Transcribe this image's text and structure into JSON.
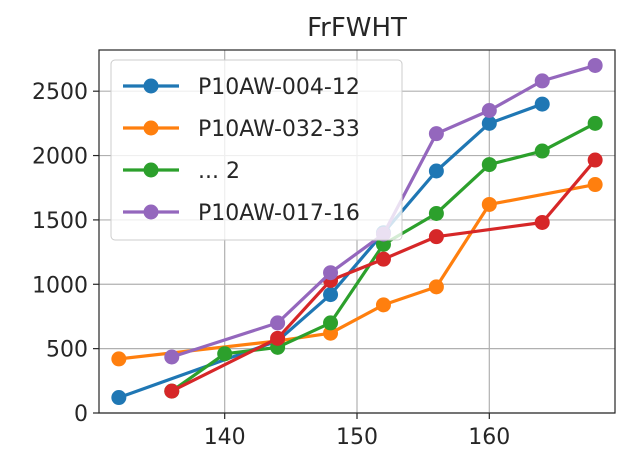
{
  "chart_data": {
    "type": "line",
    "title": "FrFWHT",
    "xlabel": "",
    "ylabel": "",
    "xlim": [
      130.5,
      169.5
    ],
    "ylim": [
      0,
      2820
    ],
    "xticks": [
      140,
      150,
      160
    ],
    "yticks": [
      0,
      500,
      1000,
      1500,
      2000,
      2500
    ],
    "grid": true,
    "legend_position": "upper-left",
    "series": [
      {
        "name": "P10AW-004-12",
        "color": "#1f77b4",
        "x": [
          132,
          144,
          148,
          152,
          156,
          160,
          164
        ],
        "y": [
          120,
          560,
          920,
          1400,
          1880,
          2250,
          2400
        ]
      },
      {
        "name": "P10AW-032-33",
        "color": "#ff7f0e",
        "x": [
          132,
          144,
          148,
          152,
          156,
          160,
          168
        ],
        "y": [
          420,
          560,
          620,
          840,
          980,
          1620,
          1775
        ]
      },
      {
        "name": "... 2",
        "color": "#2ca02c",
        "x": [
          136,
          140,
          144,
          148,
          152,
          156,
          160,
          164,
          168
        ],
        "y": [
          170,
          460,
          510,
          700,
          1310,
          1550,
          1930,
          2035,
          2250
        ]
      },
      {
        "name": "",
        "color": "#d62728",
        "x": [
          136,
          144,
          148,
          152,
          156,
          164,
          168
        ],
        "y": [
          170,
          580,
          1030,
          1195,
          1370,
          1480,
          1965
        ]
      },
      {
        "name": "P10AW-017-16",
        "color": "#9467bd",
        "x": [
          136,
          144,
          148,
          152,
          156,
          160,
          164,
          168
        ],
        "y": [
          435,
          700,
          1090,
          1390,
          2170,
          2350,
          2580,
          2700
        ]
      }
    ]
  }
}
